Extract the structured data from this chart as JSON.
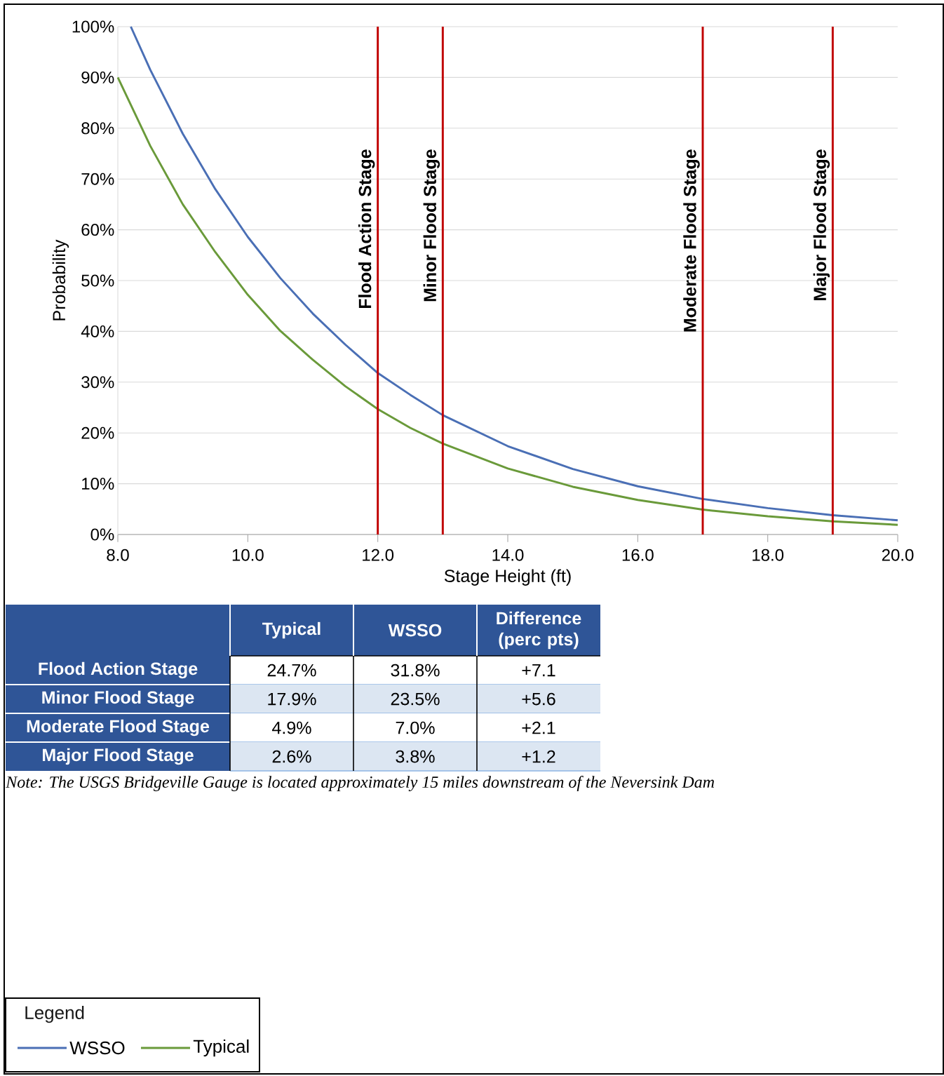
{
  "chart_data": [
    {
      "type": "line",
      "xlabel": "Stage Height (ft)",
      "ylabel": "Probability",
      "xlim": [
        8,
        20
      ],
      "ylim": [
        0,
        100
      ],
      "xticks": [
        {
          "value": 8,
          "label": "8.0"
        },
        {
          "value": 10,
          "label": "10.0"
        },
        {
          "value": 12,
          "label": "12.0"
        },
        {
          "value": 14,
          "label": "14.0"
        },
        {
          "value": 16,
          "label": "16.0"
        },
        {
          "value": 18,
          "label": "18.0"
        },
        {
          "value": 20,
          "label": "20.0"
        }
      ],
      "yticks": [
        {
          "value": 0,
          "label": "0%"
        },
        {
          "value": 10,
          "label": "10%"
        },
        {
          "value": 20,
          "label": "20%"
        },
        {
          "value": 30,
          "label": "30%"
        },
        {
          "value": 40,
          "label": "40%"
        },
        {
          "value": 50,
          "label": "50%"
        },
        {
          "value": 60,
          "label": "60%"
        },
        {
          "value": 70,
          "label": "70%"
        },
        {
          "value": 80,
          "label": "80%"
        },
        {
          "value": 90,
          "label": "90%"
        },
        {
          "value": 100,
          "label": "100%"
        }
      ],
      "grid": "y",
      "legend": "bottom left",
      "legend_title": "Legend",
      "marker": "none",
      "line_style": "solid",
      "series": [
        {
          "name": "WSSO",
          "color": "#4a6fb5",
          "x": [
            8.2,
            8.5,
            9,
            9.5,
            10,
            10.5,
            11,
            11.5,
            12,
            12.5,
            13,
            14,
            15,
            16,
            17,
            18,
            19,
            20
          ],
          "values": [
            100,
            91.5,
            78.9,
            68.0,
            58.6,
            50.5,
            43.5,
            37.4,
            31.8,
            27.5,
            23.5,
            17.4,
            12.9,
            9.5,
            7.0,
            5.2,
            3.8,
            2.8
          ]
        },
        {
          "name": "Typical",
          "color": "#6a9a3a",
          "x": [
            8,
            8.5,
            9,
            9.5,
            10,
            10.5,
            11,
            11.5,
            12,
            12.5,
            13,
            14,
            15,
            16,
            17,
            18,
            19,
            20
          ],
          "values": [
            90,
            76.5,
            65.0,
            55.6,
            47.2,
            40.1,
            34.4,
            29.2,
            24.7,
            21.0,
            17.9,
            13.0,
            9.4,
            6.8,
            4.9,
            3.6,
            2.6,
            1.9
          ]
        }
      ],
      "ref_lines": [
        {
          "axis": "x",
          "value": 12,
          "label": "Flood Action Stage",
          "color": "#c00000"
        },
        {
          "axis": "x",
          "value": 13,
          "label": "Minor Flood Stage",
          "color": "#c00000"
        },
        {
          "axis": "x",
          "value": 17,
          "label": "Moderate Flood Stage",
          "color": "#c00000"
        },
        {
          "axis": "x",
          "value": 19,
          "label": "Major Flood Stage",
          "color": "#c00000"
        }
      ]
    },
    {
      "type": "other",
      "categories": [
        "Typical",
        "WSSO",
        "Difference (perc pts)"
      ],
      "y_categories": [
        "Flood Action Stage",
        "Minor Flood Stage",
        "Moderate Flood Stage",
        "Major Flood Stage"
      ],
      "cell_labels": [
        [
          "24.7%",
          "31.8%",
          "+7.1"
        ],
        [
          "17.9%",
          "23.5%",
          "+5.6"
        ],
        [
          "4.9%",
          "7.0%",
          "+2.1"
        ],
        [
          "2.6%",
          "3.8%",
          "+1.2"
        ]
      ],
      "annotations": [
        "Note: The USGS Bridgeville Gauge is located approximately 15 miles downstream of the Neversink Dam"
      ]
    }
  ]
}
